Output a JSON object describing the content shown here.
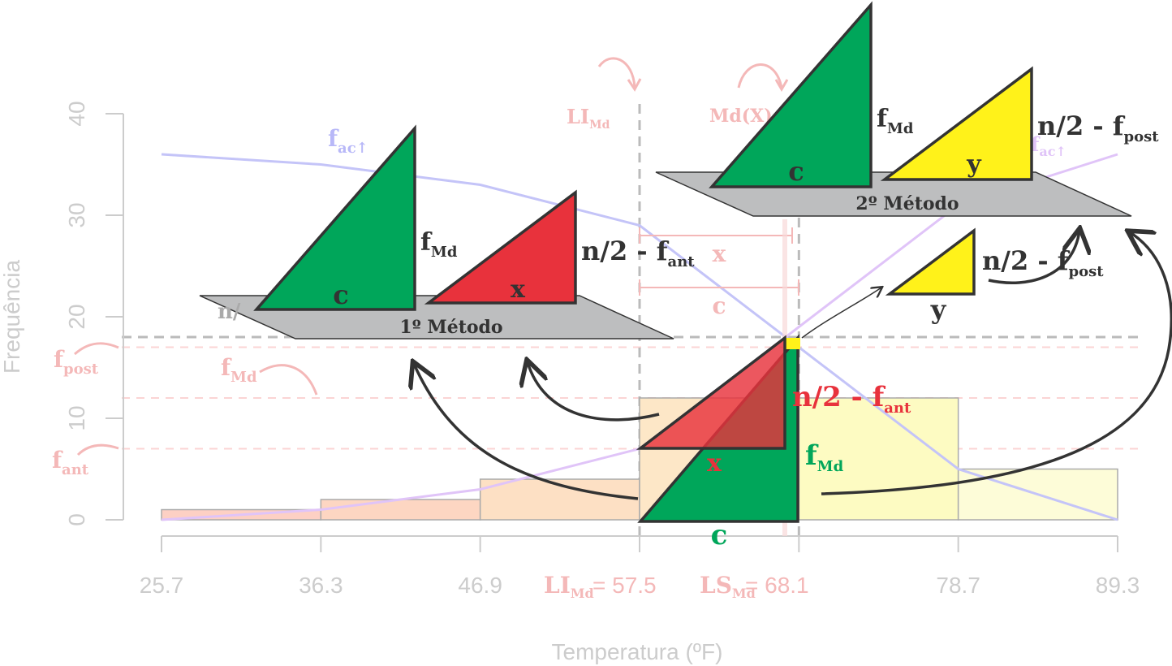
{
  "chart_data": {
    "type": "bar",
    "xlabel": "Temperatura (ºF)",
    "ylabel": "Frequência",
    "ylim": [
      0,
      40
    ],
    "yticks": [
      "0",
      "10",
      "20",
      "30",
      "40"
    ],
    "xtick_labels": [
      "25.7",
      "36.3",
      "46.9",
      "57.5",
      "68.1",
      "78.7",
      "89.3"
    ],
    "bins": [
      {
        "from": 25.7,
        "to": 36.3,
        "freq": 1,
        "color": "#fdd0c4"
      },
      {
        "from": 36.3,
        "to": 46.9,
        "freq": 2,
        "color": "#fdd6c2"
      },
      {
        "from": 46.9,
        "to": 57.5,
        "freq": 4,
        "color": "#fde0c4"
      },
      {
        "from": 57.5,
        "to": 68.1,
        "freq": 12,
        "color": "#fde7c7"
      },
      {
        "from": 68.1,
        "to": 78.7,
        "freq": 12,
        "color": "#fdfbc2"
      },
      {
        "from": 78.7,
        "to": 89.3,
        "freq": 5,
        "color": "#fdfcd8"
      }
    ],
    "series": [
      {
        "name": "fac↑",
        "x": [
          25.7,
          36.3,
          46.9,
          57.5,
          68.1,
          78.7,
          89.3
        ],
        "values": [
          0,
          1,
          3,
          7,
          19,
          31,
          36
        ],
        "color": "#e0c4f8"
      },
      {
        "name": "fac↑",
        "x": [
          25.7,
          36.3,
          46.9,
          57.5,
          68.1,
          78.7,
          89.3
        ],
        "values": [
          36,
          35,
          33,
          29,
          17,
          5,
          0
        ],
        "color": "#c4c4f8"
      }
    ],
    "reference_lines": {
      "half_n": 18,
      "f_post": 17,
      "f_md": 12,
      "f_ant": 7,
      "median": 67.2
    }
  },
  "labels": {
    "li_md": "LI",
    "li_md_sub": "Md",
    "md_x": "Md(X)",
    "x_li_md": "LI",
    "x_li_md_sub": "Md",
    "x_li_md_eq": "= 57.5",
    "x_ls_md": "LS",
    "x_ls_md_sub": "Md",
    "x_ls_md_eq": "= 68.1",
    "f_post": "f",
    "f_post_sub": "post",
    "f_md": "f",
    "f_md_sub": "Md",
    "f_ant": "f",
    "f_ant_sub": "ant",
    "fac_left": "f",
    "fac_left_sub": "ac↑",
    "fac_right": "f",
    "fac_right_sub": "ac↑",
    "x_brace": "x",
    "c_brace": "c",
    "n_hidden": "n/"
  },
  "method1": {
    "title": "1º Método",
    "c": "c",
    "x": "x",
    "fmd": "f",
    "fmd_sub": "Md",
    "nf": "n/2 - f",
    "nf_sub": "ant"
  },
  "method2": {
    "title": "2º Método",
    "c": "c",
    "y": "y",
    "fmd": "f",
    "fmd_sub": "Md",
    "nf": "n/2 - f",
    "nf_sub": "post"
  },
  "small_right": {
    "y": "y",
    "nf": "n/2 - f",
    "nf_sub": "post"
  },
  "center": {
    "nf": "n/2 - f",
    "nf_sub": "ant",
    "fmd": "f",
    "fmd_sub": "Md",
    "x": "x",
    "c": "c"
  },
  "colors": {
    "green": "#00a65a",
    "red": "#e8323c",
    "yellow": "#fff21a",
    "gray": "#bdbebf",
    "dark": "#333333"
  }
}
